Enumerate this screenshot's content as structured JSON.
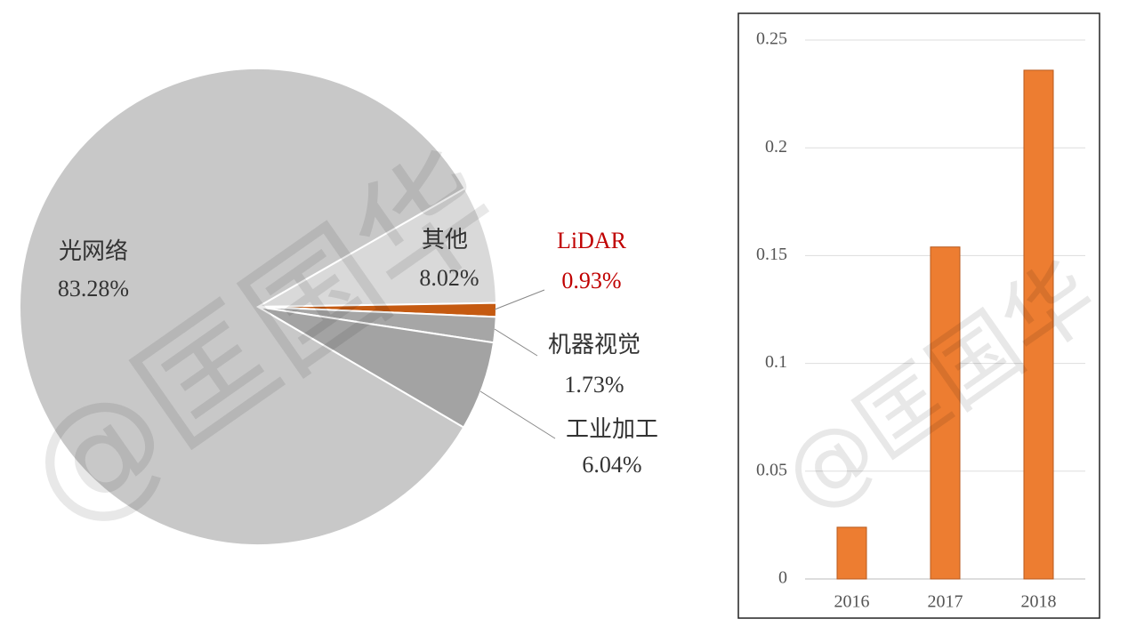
{
  "watermark": "@匡国华",
  "chart_data": [
    {
      "type": "pie",
      "categories": [
        "其他",
        "LiDAR",
        "机器视觉",
        "工业加工",
        "光网络"
      ],
      "values": [
        8.02,
        0.93,
        1.73,
        6.04,
        83.28
      ],
      "value_labels": [
        "8.02%",
        "0.93%",
        "1.73%",
        "6.04%",
        "83.28%"
      ],
      "colors": [
        "#d9d9d9",
        "#c55a11",
        "#a6a6a6",
        "#a3a3a3",
        "#c8c8c8"
      ]
    },
    {
      "type": "bar",
      "categories": [
        "2016",
        "2017",
        "2018"
      ],
      "values": [
        0.024,
        0.154,
        0.236
      ],
      "color": "#ed7d31",
      "ylim": [
        0,
        0.25
      ],
      "yticks": [
        0,
        0.05,
        0.1,
        0.15,
        0.2,
        0.25
      ],
      "grid": true
    }
  ]
}
